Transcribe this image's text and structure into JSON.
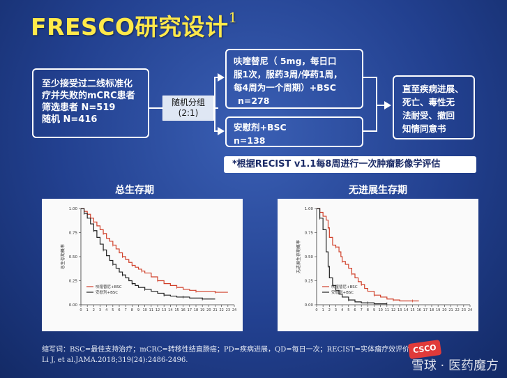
{
  "title": "FRESCO研究设计",
  "title_sup": "1",
  "left_box": [
    "至少接受过二线标准化",
    "疗并失败的mCRC患者",
    "筛选患者 N=519",
    "随机 N=416"
  ],
  "randomization": [
    "随机分组",
    "(2:1)"
  ],
  "arm_top": [
    "呋喹替尼（ 5mg，每日口",
    "服1次，服药3周/停药1周，",
    "每4周为一个周期）+BSC",
    "n=278"
  ],
  "arm_bottom": [
    "安慰剂+BSC",
    "n=138"
  ],
  "outcome": [
    "直至疾病进展、",
    "死亡、毒性无",
    "法耐受、撤回",
    "知情同意书"
  ],
  "note": "*根据RECIST v1.1每8周进行一次肿瘤影像学评估",
  "os_title": "总生存期",
  "pfs_title": "无进展生存期",
  "footer_abbr": "缩写词：BSC=最佳支持治疗；mCRC=转移性结直肠癌；PD=疾病进展，QD=每日一次；RECIST=实体瘤疗效评价标准",
  "footer_ref": "Li J, et al.JAMA.2018;319(24):2486-2496.",
  "watermark": "雪球 · 医药魔方",
  "badge": "CSCO",
  "chart_data": [
    {
      "type": "line",
      "title": "总生存期",
      "ylim": [
        0,
        1
      ],
      "xlim": [
        0,
        24
      ],
      "yticks": [
        "0.00",
        "0.25",
        "0.50",
        "0.75",
        "1.00"
      ],
      "xticks": [
        "0",
        "1",
        "2",
        "3",
        "4",
        "5",
        "6",
        "7",
        "8",
        "9",
        "10",
        "11",
        "12",
        "13",
        "14",
        "15",
        "16",
        "17",
        "18",
        "19",
        "20",
        "21",
        "22",
        "23",
        "24"
      ],
      "ylabel": "总生存期概率",
      "legend": [
        "呋喹替尼+BSC",
        "安慰剂+BSC"
      ],
      "series": [
        {
          "name": "呋喹替尼+BSC",
          "color": "#d0402a",
          "x": [
            0,
            0.5,
            1,
            1.5,
            2,
            2.5,
            3,
            3.5,
            4,
            4.5,
            5,
            5.5,
            6,
            6.5,
            7,
            7.5,
            8,
            8.5,
            9,
            9.5,
            10,
            11,
            12,
            13,
            14,
            15,
            16,
            17,
            18,
            19,
            20,
            21,
            22,
            23
          ],
          "y": [
            1.0,
            0.97,
            0.94,
            0.9,
            0.86,
            0.82,
            0.78,
            0.74,
            0.69,
            0.66,
            0.62,
            0.58,
            0.54,
            0.5,
            0.47,
            0.44,
            0.41,
            0.39,
            0.37,
            0.35,
            0.33,
            0.29,
            0.25,
            0.22,
            0.2,
            0.18,
            0.16,
            0.15,
            0.14,
            0.14,
            0.14,
            0.13,
            0.13,
            0.13
          ]
        },
        {
          "name": "安慰剂+BSC",
          "color": "#222222",
          "x": [
            0,
            0.5,
            1,
            1.5,
            2,
            2.5,
            3,
            3.5,
            4,
            4.5,
            5,
            5.5,
            6,
            6.5,
            7,
            7.5,
            8,
            8.5,
            9,
            10,
            11,
            12,
            13,
            14,
            15,
            16,
            17,
            18,
            19,
            20,
            21
          ],
          "y": [
            1.0,
            0.95,
            0.9,
            0.84,
            0.77,
            0.7,
            0.63,
            0.57,
            0.51,
            0.46,
            0.42,
            0.38,
            0.34,
            0.31,
            0.28,
            0.25,
            0.22,
            0.2,
            0.18,
            0.16,
            0.14,
            0.12,
            0.1,
            0.09,
            0.08,
            0.08,
            0.07,
            0.07,
            0.06,
            0.06,
            0.06
          ]
        }
      ]
    },
    {
      "type": "line",
      "title": "无进展生存期",
      "ylim": [
        0,
        1
      ],
      "xlim": [
        0,
        24
      ],
      "yticks": [
        "0.00",
        "0.25",
        "0.50",
        "0.75",
        "1.00"
      ],
      "xticks": [
        "0",
        "1",
        "2",
        "3",
        "4",
        "5",
        "6",
        "7",
        "8",
        "9",
        "10",
        "11",
        "12",
        "13",
        "14",
        "15",
        "16",
        "17",
        "18",
        "19",
        "20",
        "21",
        "22",
        "23",
        "24"
      ],
      "ylabel": "无进展生存期概率",
      "legend": [
        "呋喹替尼+BSC",
        "安慰剂+BSC"
      ],
      "series": [
        {
          "name": "呋喹替尼+BSC",
          "color": "#d0402a",
          "x": [
            0,
            0.5,
            1,
            1.5,
            1.8,
            2,
            2.5,
            3,
            3.5,
            3.8,
            4,
            4.5,
            5,
            5.5,
            6,
            6.5,
            7,
            7.5,
            8,
            9,
            10,
            11,
            12,
            13,
            14,
            15,
            16
          ],
          "y": [
            1.0,
            0.96,
            0.92,
            0.88,
            0.8,
            0.7,
            0.62,
            0.6,
            0.55,
            0.5,
            0.45,
            0.42,
            0.38,
            0.32,
            0.28,
            0.24,
            0.21,
            0.17,
            0.14,
            0.1,
            0.08,
            0.06,
            0.05,
            0.04,
            0.04,
            0.04,
            0.04
          ]
        },
        {
          "name": "安慰剂+BSC",
          "color": "#222222",
          "x": [
            0,
            0.5,
            1,
            1.5,
            1.8,
            2,
            2.5,
            3,
            3.5,
            4,
            5,
            6,
            7,
            8,
            9,
            10,
            11
          ],
          "y": [
            1.0,
            0.9,
            0.78,
            0.55,
            0.4,
            0.28,
            0.2,
            0.15,
            0.11,
            0.08,
            0.05,
            0.03,
            0.02,
            0.02,
            0.01,
            0.01,
            0.01
          ]
        }
      ]
    }
  ]
}
